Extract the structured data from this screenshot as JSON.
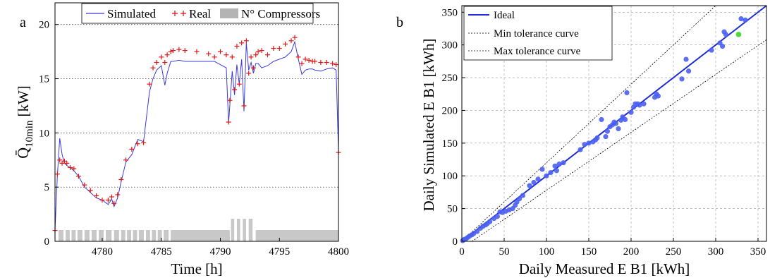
{
  "chart_data": [
    {
      "panel_label": "a",
      "type": "line",
      "xlabel": "Time [h]",
      "ylabel": "Q̄",
      "ylabel_subscript": "10min",
      "ylabel_unit": "[kW]",
      "xlim": [
        4776,
        4800
      ],
      "ylim": [
        0,
        22
      ],
      "xticks": [
        4780,
        4785,
        4790,
        4795,
        4800
      ],
      "yticks": [
        0,
        5,
        10,
        15,
        20
      ],
      "grid": "horizontal dotted",
      "legend_position": "top",
      "colors": {
        "simulated": "#3b3bd9",
        "real": "#e01818",
        "compressors": "#c8c8c8"
      },
      "series": [
        {
          "name": "Simulated",
          "style": "line",
          "x": [
            4776,
            4776.2,
            4776.4,
            4776.6,
            4776.8,
            4777,
            4777.3,
            4777.6,
            4778,
            4778.5,
            4779,
            4779.5,
            4780,
            4780.5,
            4780.8,
            4781,
            4781.3,
            4781.6,
            4782,
            4782.5,
            4783,
            4783.5,
            4784,
            4784.3,
            4784.6,
            4785,
            4785.3,
            4785.5,
            4785.8,
            4786,
            4786.5,
            4787,
            4788,
            4789,
            4789.5,
            4790,
            4790.5,
            4790.7,
            4790.8,
            4791,
            4791.2,
            4791.4,
            4791.6,
            4791.8,
            4792,
            4792.2,
            4792.4,
            4792.6,
            4792.8,
            4793,
            4793.2,
            4793.5,
            4794,
            4794.5,
            4795,
            4795.5,
            4796,
            4796.3,
            4796.6,
            4796.9,
            4797.2,
            4797.5,
            4797.8,
            4798,
            4798.5,
            4799,
            4799.5,
            4799.8,
            4800
          ],
          "y": [
            1.0,
            6.0,
            9.5,
            8.0,
            7.2,
            7.0,
            6.8,
            6.5,
            6.0,
            5.0,
            4.5,
            4.0,
            3.8,
            3.4,
            3.9,
            3.2,
            4.0,
            5.5,
            7.3,
            8.0,
            9.4,
            9.2,
            13.8,
            15.0,
            15.8,
            16.2,
            14.4,
            15.5,
            16.6,
            16.6,
            16.7,
            16.6,
            16.6,
            16.6,
            16.6,
            16.3,
            16.0,
            10.9,
            12.5,
            15.7,
            13.5,
            16.3,
            14.5,
            16.8,
            12.0,
            18.3,
            15.8,
            16.5,
            15.5,
            16.4,
            16.4,
            16.0,
            16.2,
            16.6,
            16.8,
            17.0,
            17.5,
            18.4,
            16.8,
            15.4,
            15.8,
            15.9,
            15.9,
            15.8,
            15.7,
            15.9,
            16.0,
            15.8,
            8.3
          ]
        },
        {
          "name": "Real",
          "style": "markers",
          "x": [
            4776,
            4776.2,
            4776.4,
            4776.6,
            4776.8,
            4777,
            4777.3,
            4777.6,
            4778,
            4778.5,
            4779,
            4779.5,
            4780,
            4780.5,
            4780.8,
            4781,
            4781.3,
            4781.6,
            4782,
            4782.5,
            4783,
            4783.5,
            4784,
            4784.3,
            4784.6,
            4785,
            4785.3,
            4785.5,
            4785.8,
            4786,
            4786.5,
            4787,
            4788,
            4789,
            4789.5,
            4790,
            4790.5,
            4790.7,
            4790.8,
            4791,
            4791.2,
            4791.4,
            4791.6,
            4791.8,
            4792,
            4792.2,
            4792.4,
            4792.6,
            4792.8,
            4793,
            4793.2,
            4793.5,
            4794,
            4794.5,
            4795,
            4795.5,
            4796,
            4796.3,
            4796.6,
            4796.9,
            4797.2,
            4797.5,
            4797.8,
            4798,
            4798.5,
            4799,
            4799.5,
            4799.8,
            4800
          ],
          "y": [
            1.0,
            6.2,
            7.5,
            7.2,
            7.4,
            7.2,
            6.8,
            6.7,
            6.0,
            5.2,
            4.7,
            4.2,
            3.8,
            3.8,
            4.1,
            3.5,
            4.3,
            5.7,
            7.5,
            8.5,
            9.0,
            9.1,
            14.5,
            16.0,
            16.5,
            17.0,
            16.5,
            17.2,
            17.5,
            17.6,
            17.7,
            17.6,
            17.5,
            17.3,
            17.0,
            17.5,
            17.2,
            11.0,
            13.0,
            17.0,
            14.0,
            18.0,
            14.5,
            18.3,
            12.5,
            18.5,
            15.5,
            17.0,
            16.0,
            17.2,
            17.5,
            17.6,
            17.2,
            17.8,
            17.8,
            18.2,
            18.5,
            18.8,
            17.0,
            16.4,
            16.8,
            16.7,
            16.6,
            16.6,
            16.5,
            16.5,
            16.4,
            16.3,
            8.2
          ]
        },
        {
          "name": "N° Compressors",
          "style": "bars",
          "x": [
            4776.3,
            4776.9,
            4777.4,
            4777.9,
            4778.5,
            4779.1,
            4779.7,
            4780.3,
            4781.0,
            4781.6,
            4782.1,
            4782.6,
            4783.1,
            4783.7,
            4784.2,
            4784.7,
            4785.2,
            4785.8,
            4787,
            4788,
            4789,
            4790,
            4790.9,
            4791.4,
            4791.9,
            4792.4,
            4793,
            4794,
            4795,
            4796,
            4797,
            4798,
            4799,
            4800
          ],
          "y": [
            1,
            1,
            1,
            1,
            1,
            1,
            1,
            1,
            1,
            1,
            1,
            1,
            1,
            1,
            1,
            1,
            1,
            1,
            1,
            1,
            1,
            1,
            2,
            2,
            2,
            2,
            1,
            1,
            1,
            1,
            1,
            1,
            1,
            1
          ]
        }
      ]
    },
    {
      "panel_label": "b",
      "type": "scatter",
      "xlabel": "Daily Measured E B1 [kWh]",
      "ylabel": "Daily Simulated E B1 [kWh]",
      "xlim": [
        0,
        360
      ],
      "ylim": [
        0,
        360
      ],
      "xticks": [
        0,
        50,
        100,
        150,
        200,
        250,
        300,
        350
      ],
      "yticks": [
        0,
        50,
        100,
        150,
        200,
        250,
        300,
        350
      ],
      "grid": "dashed",
      "legend_position": "top-left",
      "colors": {
        "points": "#4a5ff0",
        "highlight": "#4ddb3a",
        "ideal": "#1e2dd8",
        "tolerance": "#000000"
      },
      "series": [
        {
          "name": "Ideal",
          "style": "line",
          "x": [
            0,
            360
          ],
          "y": [
            0,
            360
          ]
        },
        {
          "name": "Min tolerance curve",
          "style": "dashed",
          "x": [
            0,
            300
          ],
          "y": [
            0,
            360
          ]
        },
        {
          "name": "Max tolerance curve",
          "style": "dashed",
          "x": [
            12,
            360
          ],
          "y": [
            0,
            308
          ]
        },
        {
          "style": "points",
          "x": [
            1,
            3,
            5,
            7,
            9,
            12,
            14,
            18,
            22,
            25,
            28,
            30,
            33,
            38,
            42,
            45,
            48,
            52,
            56,
            60,
            63,
            65,
            68,
            72,
            80,
            85,
            90,
            95,
            100,
            105,
            110,
            112,
            115,
            120,
            140,
            145,
            150,
            155,
            158,
            160,
            165,
            170,
            172,
            175,
            178,
            180,
            182,
            185,
            188,
            190,
            193,
            195,
            200,
            203,
            205,
            208,
            210,
            215,
            228,
            230,
            232,
            260,
            265,
            268,
            295,
            305,
            308,
            310,
            312,
            330,
            335
          ],
          "y": [
            1,
            3,
            4,
            6,
            8,
            10,
            12,
            15,
            20,
            23,
            25,
            27,
            30,
            35,
            38,
            45,
            44,
            46,
            48,
            50,
            55,
            60,
            65,
            70,
            85,
            90,
            95,
            110,
            100,
            105,
            115,
            108,
            118,
            120,
            140,
            148,
            150,
            152,
            155,
            158,
            186,
            160,
            168,
            175,
            178,
            182,
            180,
            172,
            185,
            190,
            186,
            227,
            197,
            205,
            210,
            210,
            208,
            210,
            220,
            225,
            222,
            248,
            278,
            260,
            292,
            303,
            298,
            320,
            316,
            340,
            338
          ]
        },
        {
          "style": "highlight",
          "x": [
            327
          ],
          "y": [
            316
          ]
        }
      ]
    }
  ]
}
